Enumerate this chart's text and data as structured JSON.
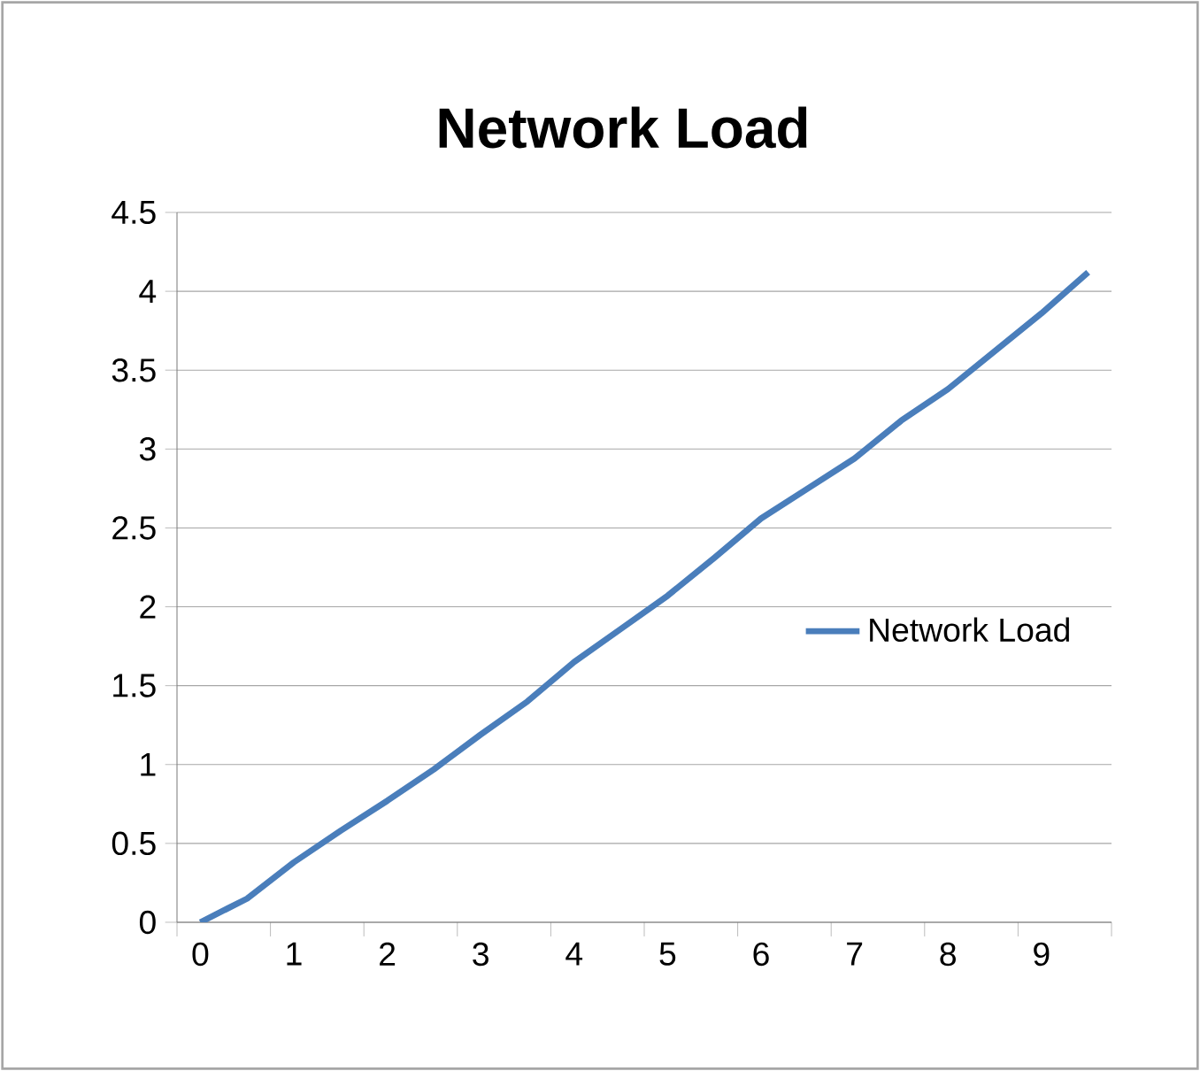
{
  "chart_data": {
    "type": "line",
    "title": "Network Load",
    "categories": [
      "0",
      null,
      "1",
      null,
      "2",
      null,
      "3",
      null,
      "4",
      null,
      "5",
      null,
      "6",
      null,
      "7",
      null,
      "8",
      null,
      "9",
      null
    ],
    "series": [
      {
        "name": "Network Load",
        "color": "#4a7ebb",
        "values": [
          0,
          0.15,
          0.38,
          0.58,
          0.77,
          0.97,
          1.19,
          1.4,
          1.65,
          1.86,
          2.07,
          2.31,
          2.56,
          2.75,
          2.94,
          3.18,
          3.38,
          3.62,
          3.86,
          4.12
        ]
      }
    ],
    "ylim": [
      0,
      4.5
    ],
    "yticks": [
      0,
      0.5,
      1,
      1.5,
      2,
      2.5,
      3,
      3.5,
      4,
      4.5
    ],
    "grid": "y",
    "legend": "right",
    "marker": "none",
    "line_style": "solid"
  }
}
